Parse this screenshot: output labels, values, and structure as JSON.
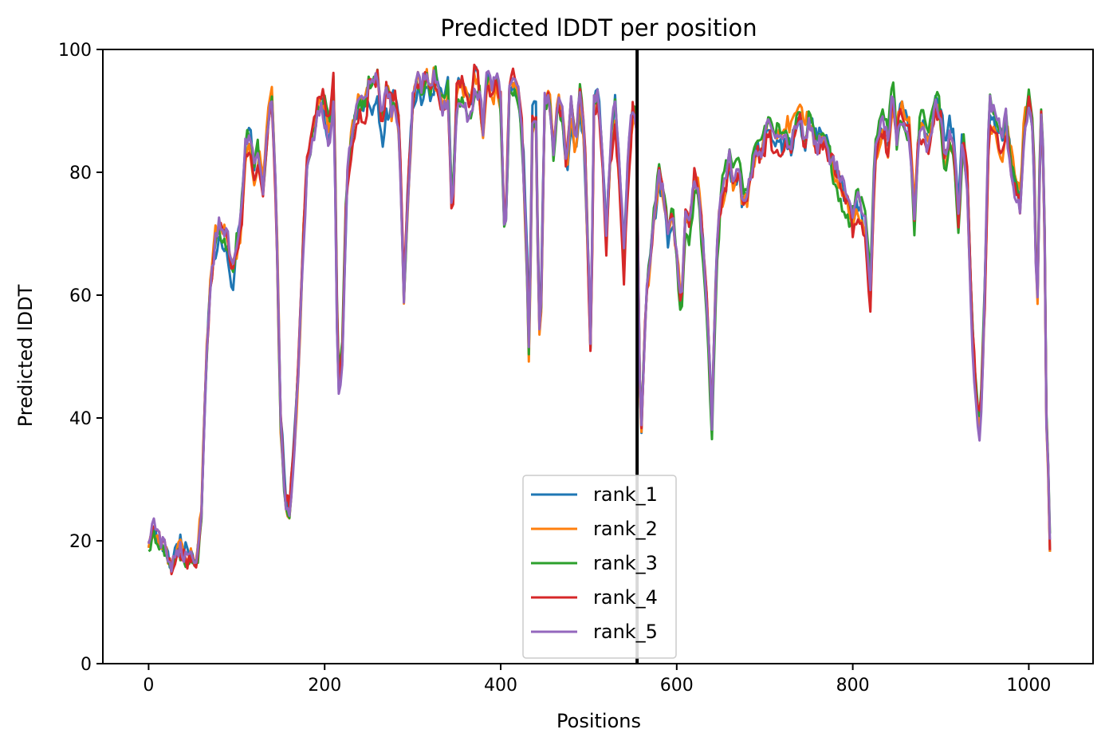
{
  "chart_data": {
    "type": "line",
    "title": "Predicted lDDT per position",
    "xlabel": "Positions",
    "ylabel": "Predicted lDDT",
    "xlim": [
      -52,
      1073
    ],
    "ylim": [
      0,
      100
    ],
    "xticks": [
      0,
      200,
      400,
      600,
      800,
      1000
    ],
    "yticks": [
      0,
      20,
      40,
      60,
      80,
      100
    ],
    "grid": false,
    "legend_position": "lower center",
    "vertical_line": {
      "x": 555,
      "color": "#000000"
    },
    "base_curve": [
      [
        0,
        18
      ],
      [
        5,
        22
      ],
      [
        10,
        20
      ],
      [
        15,
        19
      ],
      [
        20,
        18
      ],
      [
        25,
        15
      ],
      [
        30,
        16
      ],
      [
        35,
        18
      ],
      [
        40,
        17
      ],
      [
        45,
        16
      ],
      [
        50,
        17
      ],
      [
        55,
        17
      ],
      [
        60,
        25
      ],
      [
        65,
        48
      ],
      [
        70,
        62
      ],
      [
        75,
        68
      ],
      [
        80,
        70
      ],
      [
        85,
        69
      ],
      [
        90,
        68
      ],
      [
        95,
        62
      ],
      [
        100,
        68
      ],
      [
        105,
        72
      ],
      [
        110,
        84
      ],
      [
        115,
        86
      ],
      [
        120,
        80
      ],
      [
        125,
        84
      ],
      [
        130,
        78
      ],
      [
        135,
        88
      ],
      [
        140,
        93
      ],
      [
        145,
        75
      ],
      [
        150,
        40
      ],
      [
        155,
        27
      ],
      [
        160,
        24
      ],
      [
        165,
        35
      ],
      [
        170,
        48
      ],
      [
        175,
        66
      ],
      [
        180,
        80
      ],
      [
        185,
        84
      ],
      [
        190,
        88
      ],
      [
        195,
        91
      ],
      [
        200,
        90
      ],
      [
        205,
        86
      ],
      [
        210,
        94
      ],
      [
        213,
        70
      ],
      [
        215,
        44
      ],
      [
        220,
        50
      ],
      [
        225,
        78
      ],
      [
        230,
        84
      ],
      [
        235,
        89
      ],
      [
        240,
        91
      ],
      [
        245,
        90
      ],
      [
        250,
        93
      ],
      [
        255,
        92
      ],
      [
        260,
        94
      ],
      [
        265,
        86
      ],
      [
        270,
        92
      ],
      [
        275,
        90
      ],
      [
        280,
        92
      ],
      [
        285,
        86
      ],
      [
        290,
        60
      ],
      [
        295,
        78
      ],
      [
        300,
        90
      ],
      [
        305,
        94
      ],
      [
        310,
        92
      ],
      [
        315,
        95
      ],
      [
        320,
        92
      ],
      [
        325,
        95
      ],
      [
        330,
        93
      ],
      [
        335,
        90
      ],
      [
        340,
        93
      ],
      [
        345,
        72
      ],
      [
        350,
        92
      ],
      [
        355,
        93
      ],
      [
        360,
        92
      ],
      [
        365,
        89
      ],
      [
        370,
        95
      ],
      [
        375,
        93
      ],
      [
        380,
        85
      ],
      [
        385,
        95
      ],
      [
        390,
        92
      ],
      [
        395,
        94
      ],
      [
        400,
        90
      ],
      [
        405,
        66
      ],
      [
        410,
        93
      ],
      [
        415,
        94
      ],
      [
        420,
        92
      ],
      [
        425,
        84
      ],
      [
        430,
        65
      ],
      [
        433,
        45
      ],
      [
        435,
        88
      ],
      [
        440,
        90
      ],
      [
        443,
        60
      ],
      [
        445,
        52
      ],
      [
        450,
        92
      ],
      [
        455,
        93
      ],
      [
        460,
        84
      ],
      [
        465,
        92
      ],
      [
        470,
        90
      ],
      [
        475,
        80
      ],
      [
        480,
        90
      ],
      [
        485,
        84
      ],
      [
        490,
        92
      ],
      [
        495,
        86
      ],
      [
        500,
        62
      ],
      [
        503,
        45
      ],
      [
        505,
        90
      ],
      [
        510,
        92
      ],
      [
        515,
        84
      ],
      [
        520,
        68
      ],
      [
        525,
        84
      ],
      [
        530,
        90
      ],
      [
        535,
        80
      ],
      [
        540,
        65
      ],
      [
        545,
        82
      ],
      [
        550,
        90
      ],
      [
        555,
        88
      ],
      [
        557,
        50
      ],
      [
        560,
        38
      ],
      [
        565,
        60
      ],
      [
        570,
        66
      ],
      [
        575,
        74
      ],
      [
        580,
        80
      ],
      [
        585,
        77
      ],
      [
        590,
        70
      ],
      [
        595,
        74
      ],
      [
        600,
        66
      ],
      [
        605,
        56
      ],
      [
        610,
        72
      ],
      [
        615,
        70
      ],
      [
        620,
        78
      ],
      [
        625,
        76
      ],
      [
        630,
        66
      ],
      [
        635,
        55
      ],
      [
        640,
        38
      ],
      [
        645,
        64
      ],
      [
        650,
        76
      ],
      [
        655,
        79
      ],
      [
        660,
        83
      ],
      [
        665,
        79
      ],
      [
        670,
        82
      ],
      [
        675,
        76
      ],
      [
        680,
        76
      ],
      [
        685,
        80
      ],
      [
        690,
        84
      ],
      [
        695,
        83
      ],
      [
        700,
        85
      ],
      [
        705,
        88
      ],
      [
        710,
        84
      ],
      [
        715,
        85
      ],
      [
        720,
        84
      ],
      [
        725,
        86
      ],
      [
        730,
        85
      ],
      [
        735,
        88
      ],
      [
        740,
        90
      ],
      [
        745,
        85
      ],
      [
        750,
        88
      ],
      [
        755,
        86
      ],
      [
        760,
        84
      ],
      [
        765,
        86
      ],
      [
        770,
        84
      ],
      [
        775,
        82
      ],
      [
        780,
        80
      ],
      [
        785,
        78
      ],
      [
        790,
        76
      ],
      [
        795,
        74
      ],
      [
        800,
        72
      ],
      [
        805,
        75
      ],
      [
        810,
        73
      ],
      [
        815,
        70
      ],
      [
        820,
        60
      ],
      [
        825,
        82
      ],
      [
        830,
        86
      ],
      [
        835,
        88
      ],
      [
        840,
        84
      ],
      [
        845,
        93
      ],
      [
        850,
        86
      ],
      [
        855,
        90
      ],
      [
        860,
        88
      ],
      [
        865,
        86
      ],
      [
        870,
        72
      ],
      [
        875,
        86
      ],
      [
        880,
        88
      ],
      [
        885,
        84
      ],
      [
        890,
        88
      ],
      [
        895,
        92
      ],
      [
        900,
        89
      ],
      [
        905,
        82
      ],
      [
        910,
        86
      ],
      [
        915,
        84
      ],
      [
        920,
        72
      ],
      [
        925,
        86
      ],
      [
        930,
        80
      ],
      [
        935,
        56
      ],
      [
        940,
        44
      ],
      [
        945,
        38
      ],
      [
        950,
        60
      ],
      [
        955,
        90
      ],
      [
        960,
        88
      ],
      [
        965,
        86
      ],
      [
        970,
        84
      ],
      [
        975,
        88
      ],
      [
        980,
        82
      ],
      [
        985,
        78
      ],
      [
        990,
        76
      ],
      [
        995,
        88
      ],
      [
        1000,
        92
      ],
      [
        1005,
        88
      ],
      [
        1008,
        66
      ],
      [
        1010,
        60
      ],
      [
        1013,
        88
      ],
      [
        1015,
        92
      ],
      [
        1018,
        70
      ],
      [
        1020,
        40
      ],
      [
        1022,
        32
      ],
      [
        1024,
        20
      ]
    ],
    "series": [
      {
        "name": "rank_1",
        "color": "#1f77b4"
      },
      {
        "name": "rank_2",
        "color": "#ff7f0e"
      },
      {
        "name": "rank_3",
        "color": "#2ca02c"
      },
      {
        "name": "rank_4",
        "color": "#d62728"
      },
      {
        "name": "rank_5",
        "color": "#9467bd"
      }
    ]
  }
}
